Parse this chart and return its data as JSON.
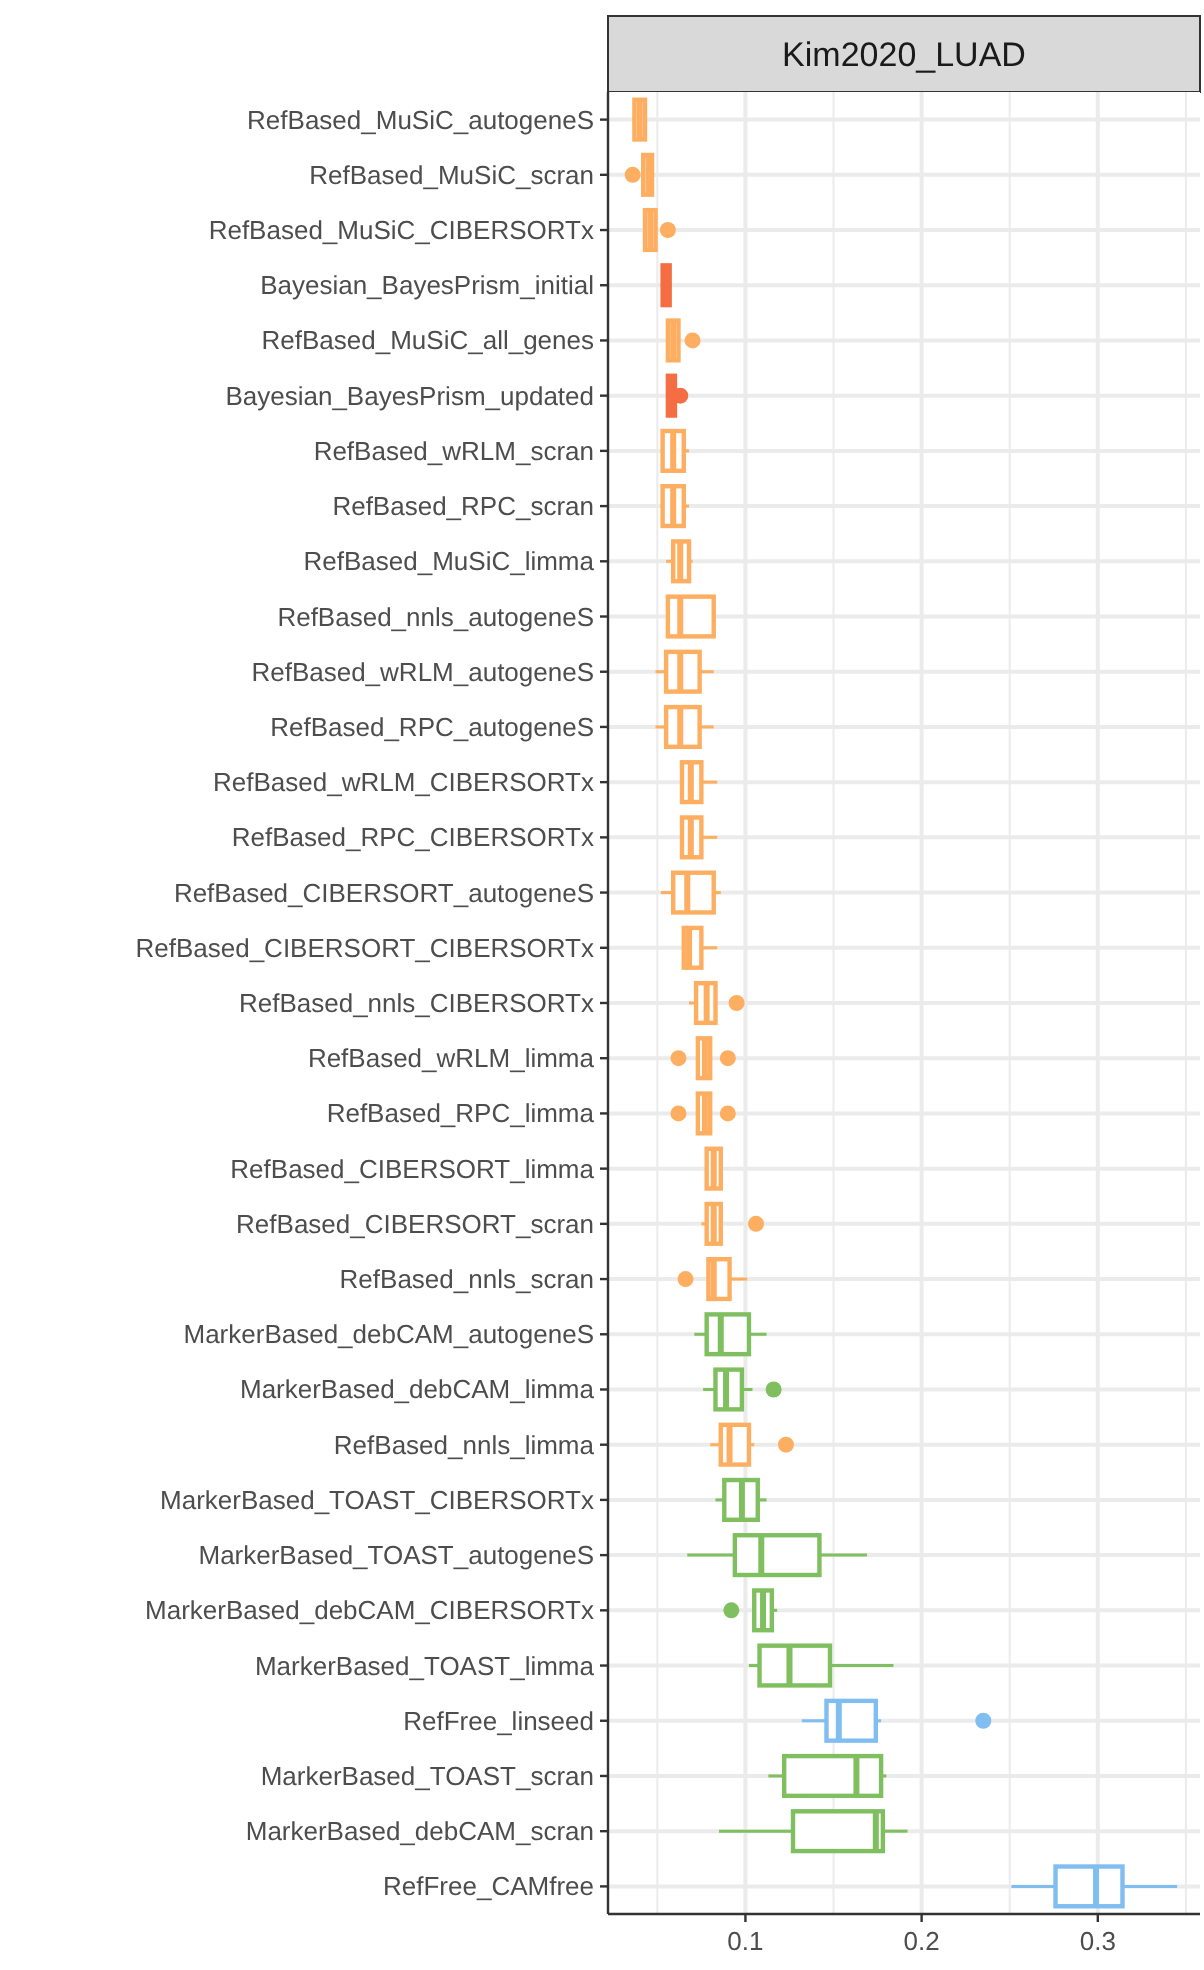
{
  "chart_data": {
    "type": "box",
    "orientation": "horizontal",
    "title": "Kim2020_LUAD",
    "grid": true,
    "categories": [
      "RefBased_MuSiC_autogeneS",
      "RefBased_MuSiC_scran",
      "RefBased_MuSiC_CIBERSORTx",
      "Bayesian_BayesPrism_initial",
      "RefBased_MuSiC_all_genes",
      "Bayesian_BayesPrism_updated",
      "RefBased_wRLM_scran",
      "RefBased_RPC_scran",
      "RefBased_MuSiC_limma",
      "RefBased_nnls_autogeneS",
      "RefBased_wRLM_autogeneS",
      "RefBased_RPC_autogeneS",
      "RefBased_wRLM_CIBERSORTx",
      "RefBased_RPC_CIBERSORTx",
      "RefBased_CIBERSORT_autogeneS",
      "RefBased_CIBERSORT_CIBERSORTx",
      "RefBased_nnls_CIBERSORTx",
      "RefBased_wRLM_limma",
      "RefBased_RPC_limma",
      "RefBased_CIBERSORT_limma",
      "RefBased_CIBERSORT_scran",
      "RefBased_nnls_scran",
      "MarkerBased_debCAM_autogeneS",
      "MarkerBased_debCAM_limma",
      "RefBased_nnls_limma",
      "MarkerBased_TOAST_CIBERSORTx",
      "MarkerBased_TOAST_autogeneS",
      "MarkerBased_debCAM_CIBERSORTx",
      "MarkerBased_TOAST_limma",
      "RefFree_linseed",
      "MarkerBased_TOAST_scran",
      "MarkerBased_debCAM_scran",
      "RefFree_CAMfree"
    ],
    "colors": [
      "#fdae61",
      "#fdae61",
      "#fdae61",
      "#f46d43",
      "#fdae61",
      "#f46d43",
      "#fdae61",
      "#fdae61",
      "#fdae61",
      "#fdae61",
      "#fdae61",
      "#fdae61",
      "#fdae61",
      "#fdae61",
      "#fdae61",
      "#fdae61",
      "#fdae61",
      "#fdae61",
      "#fdae61",
      "#fdae61",
      "#fdae61",
      "#fdae61",
      "#7fbf5f",
      "#7fbf5f",
      "#fdae61",
      "#7fbf5f",
      "#7fbf5f",
      "#7fbf5f",
      "#7fbf5f",
      "#80bdf0",
      "#7fbf5f",
      "#7fbf5f",
      "#80bdf0"
    ],
    "boxes": [
      {
        "low": 0.036,
        "q1": 0.037,
        "median": 0.04,
        "q3": 0.043,
        "high": 0.044
      },
      {
        "low": 0.041,
        "q1": 0.042,
        "median": 0.045,
        "q3": 0.047,
        "high": 0.047,
        "outliers": [
          0.036
        ]
      },
      {
        "low": 0.042,
        "q1": 0.043,
        "median": 0.046,
        "q3": 0.049,
        "high": 0.05,
        "outliers": [
          0.056
        ]
      },
      {
        "low": 0.052,
        "q1": 0.053,
        "median": 0.055,
        "q3": 0.057,
        "high": 0.058
      },
      {
        "low": 0.055,
        "q1": 0.056,
        "median": 0.059,
        "q3": 0.062,
        "high": 0.063,
        "outliers": [
          0.07
        ]
      },
      {
        "low": 0.056,
        "q1": 0.056,
        "median": 0.058,
        "q3": 0.06,
        "high": 0.06,
        "outliers": [
          0.063
        ]
      },
      {
        "low": 0.052,
        "q1": 0.053,
        "median": 0.059,
        "q3": 0.065,
        "high": 0.068
      },
      {
        "low": 0.052,
        "q1": 0.053,
        "median": 0.059,
        "q3": 0.065,
        "high": 0.068
      },
      {
        "low": 0.055,
        "q1": 0.059,
        "median": 0.063,
        "q3": 0.068,
        "high": 0.07
      },
      {
        "low": 0.055,
        "q1": 0.056,
        "median": 0.063,
        "q3": 0.082,
        "high": 0.083
      },
      {
        "low": 0.049,
        "q1": 0.055,
        "median": 0.063,
        "q3": 0.074,
        "high": 0.082
      },
      {
        "low": 0.049,
        "q1": 0.055,
        "median": 0.063,
        "q3": 0.074,
        "high": 0.082
      },
      {
        "low": 0.063,
        "q1": 0.064,
        "median": 0.069,
        "q3": 0.075,
        "high": 0.084
      },
      {
        "low": 0.063,
        "q1": 0.064,
        "median": 0.069,
        "q3": 0.075,
        "high": 0.084
      },
      {
        "low": 0.052,
        "q1": 0.059,
        "median": 0.067,
        "q3": 0.082,
        "high": 0.086
      },
      {
        "low": 0.065,
        "q1": 0.065,
        "median": 0.068,
        "q3": 0.075,
        "high": 0.084
      },
      {
        "low": 0.068,
        "q1": 0.072,
        "median": 0.078,
        "q3": 0.083,
        "high": 0.083,
        "outliers": [
          0.095
        ]
      },
      {
        "low": 0.073,
        "q1": 0.073,
        "median": 0.077,
        "q3": 0.08,
        "high": 0.08,
        "outliers": [
          0.062,
          0.09
        ]
      },
      {
        "low": 0.073,
        "q1": 0.073,
        "median": 0.077,
        "q3": 0.08,
        "high": 0.08,
        "outliers": [
          0.062,
          0.09
        ]
      },
      {
        "low": 0.078,
        "q1": 0.078,
        "median": 0.082,
        "q3": 0.086,
        "high": 0.086
      },
      {
        "low": 0.075,
        "q1": 0.078,
        "median": 0.082,
        "q3": 0.086,
        "high": 0.086,
        "outliers": [
          0.106
        ]
      },
      {
        "low": 0.079,
        "q1": 0.079,
        "median": 0.082,
        "q3": 0.091,
        "high": 0.101,
        "outliers": [
          0.066
        ]
      },
      {
        "low": 0.071,
        "q1": 0.078,
        "median": 0.086,
        "q3": 0.102,
        "high": 0.112
      },
      {
        "low": 0.076,
        "q1": 0.083,
        "median": 0.089,
        "q3": 0.098,
        "high": 0.104,
        "outliers": [
          0.116
        ]
      },
      {
        "low": 0.08,
        "q1": 0.086,
        "median": 0.091,
        "q3": 0.102,
        "high": 0.105,
        "outliers": [
          0.123
        ]
      },
      {
        "low": 0.083,
        "q1": 0.088,
        "median": 0.098,
        "q3": 0.107,
        "high": 0.112
      },
      {
        "low": 0.067,
        "q1": 0.094,
        "median": 0.109,
        "q3": 0.142,
        "high": 0.169
      },
      {
        "low": 0.105,
        "q1": 0.105,
        "median": 0.11,
        "q3": 0.115,
        "high": 0.118,
        "outliers": [
          0.092
        ]
      },
      {
        "low": 0.102,
        "q1": 0.108,
        "median": 0.125,
        "q3": 0.148,
        "high": 0.184
      },
      {
        "low": 0.132,
        "q1": 0.146,
        "median": 0.153,
        "q3": 0.174,
        "high": 0.177,
        "outliers": [
          0.235
        ]
      },
      {
        "low": 0.113,
        "q1": 0.122,
        "median": 0.163,
        "q3": 0.177,
        "high": 0.18
      },
      {
        "low": 0.085,
        "q1": 0.127,
        "median": 0.174,
        "q3": 0.178,
        "high": 0.192
      },
      {
        "low": 0.251,
        "q1": 0.276,
        "median": 0.299,
        "q3": 0.314,
        "high": 0.345
      }
    ],
    "xlim": [
      0.022,
      0.358
    ],
    "xticks": [
      0.1,
      0.2,
      0.3
    ]
  }
}
